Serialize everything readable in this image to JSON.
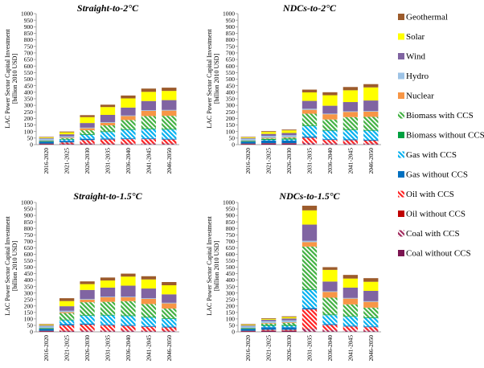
{
  "y_axis_label_line1": "LAC Power Sector Capital Investment",
  "y_axis_label_line2": "[billion 2010 USD]",
  "technologies": [
    {
      "name": "Coal without CCS",
      "color": "#7b1450",
      "hatch": false
    },
    {
      "name": "Coal with CCS",
      "color": "#a0285c",
      "hatch": true
    },
    {
      "name": "Oil without CCS",
      "color": "#c00000",
      "hatch": false
    },
    {
      "name": "Oil with CCS",
      "color": "#ff2020",
      "hatch": true
    },
    {
      "name": "Gas without CCS",
      "color": "#0070c0",
      "hatch": false
    },
    {
      "name": "Gas with CCS",
      "color": "#00b0f0",
      "hatch": true
    },
    {
      "name": "Biomass without CCS",
      "color": "#00a040",
      "hatch": false
    },
    {
      "name": "Biomass with CCS",
      "color": "#40b040",
      "hatch": true
    },
    {
      "name": "Nuclear",
      "color": "#f79646",
      "hatch": false
    },
    {
      "name": "Hydro",
      "color": "#9dc3e6",
      "hatch": false
    },
    {
      "name": "Wind",
      "color": "#8064a2",
      "hatch": false
    },
    {
      "name": "Solar",
      "color": "#ffff00",
      "hatch": false
    },
    {
      "name": "Geothermal",
      "color": "#9c5b2b",
      "hatch": false
    }
  ],
  "legend_order": [
    "Geothermal",
    "Solar",
    "Wind",
    "Hydro",
    "Nuclear",
    "Biomass with CCS",
    "Biomass without CCS",
    "Gas with CCS",
    "Gas without CCS",
    "Oil with CCS",
    "Oil without CCS",
    "Coal with CCS",
    "Coal without CCS"
  ],
  "chart_data": [
    {
      "type": "bar",
      "stacked": true,
      "title": "Straight-to-2°C",
      "categories": [
        "2016-2020",
        "2021-2025",
        "2026-2030",
        "2031-2035",
        "2036-2040",
        "2041-2045",
        "2046-2050"
      ],
      "ylim": [
        0,
        1000
      ],
      "yticks": [
        0,
        50,
        100,
        150,
        200,
        250,
        300,
        350,
        400,
        450,
        500,
        550,
        600,
        650,
        700,
        750,
        800,
        850,
        900,
        950,
        1000
      ],
      "series": [
        {
          "name": "Coal without CCS",
          "values": [
            5,
            4,
            3,
            2,
            2,
            2,
            2
          ]
        },
        {
          "name": "Coal with CCS",
          "values": [
            0,
            3,
            5,
            6,
            6,
            6,
            6
          ]
        },
        {
          "name": "Oil without CCS",
          "values": [
            3,
            2,
            2,
            1,
            1,
            1,
            1
          ]
        },
        {
          "name": "Oil with CCS",
          "values": [
            0,
            8,
            25,
            30,
            33,
            33,
            30
          ]
        },
        {
          "name": "Gas without CCS",
          "values": [
            15,
            12,
            10,
            8,
            6,
            6,
            6
          ]
        },
        {
          "name": "Gas with CCS",
          "values": [
            0,
            10,
            30,
            50,
            65,
            70,
            70
          ]
        },
        {
          "name": "Biomass without CCS",
          "values": [
            5,
            5,
            5,
            5,
            5,
            5,
            5
          ]
        },
        {
          "name": "Biomass with CCS",
          "values": [
            0,
            5,
            30,
            45,
            70,
            95,
            100
          ]
        },
        {
          "name": "Nuclear",
          "values": [
            2,
            5,
            15,
            20,
            30,
            40,
            40
          ]
        },
        {
          "name": "Hydro",
          "values": [
            15,
            10,
            5,
            5,
            5,
            5,
            5
          ]
        },
        {
          "name": "Wind",
          "values": [
            5,
            15,
            35,
            55,
            60,
            70,
            75
          ]
        },
        {
          "name": "Solar",
          "values": [
            5,
            15,
            45,
            60,
            70,
            70,
            70
          ]
        },
        {
          "name": "Geothermal",
          "values": [
            4,
            6,
            15,
            18,
            22,
            25,
            25
          ]
        }
      ]
    },
    {
      "type": "bar",
      "stacked": true,
      "title": "NDCs-to-2°C",
      "categories": [
        "2016-2020",
        "2021-2025",
        "2026-2030",
        "2031-2035",
        "2036-2040",
        "2041-2045",
        "2046-2050"
      ],
      "ylim": [
        0,
        1000
      ],
      "yticks": [
        0,
        50,
        100,
        150,
        200,
        250,
        300,
        350,
        400,
        450,
        500,
        550,
        600,
        650,
        700,
        750,
        800,
        850,
        900,
        950,
        1000
      ],
      "series": [
        {
          "name": "Coal without CCS",
          "values": [
            5,
            8,
            8,
            2,
            2,
            2,
            2
          ]
        },
        {
          "name": "Coal with CCS",
          "values": [
            0,
            0,
            0,
            10,
            8,
            6,
            6
          ]
        },
        {
          "name": "Oil without CCS",
          "values": [
            3,
            3,
            3,
            1,
            1,
            1,
            1
          ]
        },
        {
          "name": "Oil with CCS",
          "values": [
            0,
            0,
            0,
            40,
            25,
            25,
            22
          ]
        },
        {
          "name": "Gas without CCS",
          "values": [
            15,
            20,
            20,
            8,
            6,
            6,
            6
          ]
        },
        {
          "name": "Gas with CCS",
          "values": [
            0,
            5,
            8,
            80,
            65,
            70,
            70
          ]
        },
        {
          "name": "Biomass without CCS",
          "values": [
            5,
            8,
            8,
            5,
            5,
            5,
            5
          ]
        },
        {
          "name": "Biomass with CCS",
          "values": [
            0,
            3,
            5,
            90,
            80,
            95,
            100
          ]
        },
        {
          "name": "Nuclear",
          "values": [
            2,
            5,
            5,
            30,
            40,
            40,
            40
          ]
        },
        {
          "name": "Hydro",
          "values": [
            15,
            15,
            15,
            8,
            5,
            5,
            5
          ]
        },
        {
          "name": "Wind",
          "values": [
            5,
            15,
            17,
            60,
            60,
            70,
            80
          ]
        },
        {
          "name": "Solar",
          "values": [
            5,
            15,
            20,
            65,
            80,
            90,
            100
          ]
        },
        {
          "name": "Geothermal",
          "values": [
            4,
            6,
            6,
            21,
            23,
            25,
            25
          ]
        }
      ]
    },
    {
      "type": "bar",
      "stacked": true,
      "title": "Straight-to-1.5°C",
      "categories": [
        "2016-2020",
        "2021-2025",
        "2026-2030",
        "2031-2035",
        "2036-2040",
        "2041-2045",
        "2046-2050"
      ],
      "ylim": [
        0,
        1000
      ],
      "yticks": [
        0,
        50,
        100,
        150,
        200,
        250,
        300,
        350,
        400,
        450,
        500,
        550,
        600,
        650,
        700,
        750,
        800,
        850,
        900,
        950,
        1000
      ],
      "series": [
        {
          "name": "Coal without CCS",
          "values": [
            5,
            3,
            2,
            2,
            2,
            2,
            2
          ]
        },
        {
          "name": "Coal with CCS",
          "values": [
            0,
            5,
            8,
            8,
            8,
            6,
            6
          ]
        },
        {
          "name": "Oil without CCS",
          "values": [
            3,
            2,
            1,
            1,
            1,
            1,
            1
          ]
        },
        {
          "name": "Oil with CCS",
          "values": [
            0,
            40,
            45,
            40,
            35,
            30,
            25
          ]
        },
        {
          "name": "Gas without CCS",
          "values": [
            15,
            10,
            8,
            6,
            6,
            6,
            6
          ]
        },
        {
          "name": "Gas with CCS",
          "values": [
            0,
            30,
            60,
            70,
            70,
            65,
            60
          ]
        },
        {
          "name": "Biomass without CCS",
          "values": [
            5,
            5,
            5,
            5,
            5,
            5,
            5
          ]
        },
        {
          "name": "Biomass with CCS",
          "values": [
            0,
            50,
            100,
            100,
            110,
            100,
            75
          ]
        },
        {
          "name": "Nuclear",
          "values": [
            2,
            8,
            20,
            35,
            30,
            40,
            40
          ]
        },
        {
          "name": "Hydro",
          "values": [
            15,
            10,
            5,
            5,
            5,
            5,
            5
          ]
        },
        {
          "name": "Wind",
          "values": [
            5,
            35,
            70,
            70,
            85,
            75,
            65
          ]
        },
        {
          "name": "Solar",
          "values": [
            5,
            40,
            45,
            55,
            70,
            70,
            70
          ]
        },
        {
          "name": "Geothermal",
          "values": [
            5,
            22,
            21,
            23,
            23,
            25,
            25
          ]
        }
      ]
    },
    {
      "type": "bar",
      "stacked": true,
      "title": "NDCs-to-1.5°C",
      "categories": [
        "2016-2020",
        "2021-2025",
        "2026-2030",
        "2031-2035",
        "2036-2040",
        "2041-2045",
        "2046-2050"
      ],
      "ylim": [
        0,
        1000
      ],
      "yticks": [
        0,
        50,
        100,
        150,
        200,
        250,
        300,
        350,
        400,
        450,
        500,
        550,
        600,
        650,
        700,
        750,
        800,
        850,
        900,
        950,
        1000
      ],
      "series": [
        {
          "name": "Coal without CCS",
          "values": [
            5,
            8,
            8,
            2,
            2,
            2,
            2
          ]
        },
        {
          "name": "Coal with CCS",
          "values": [
            0,
            0,
            0,
            20,
            10,
            8,
            8
          ]
        },
        {
          "name": "Oil without CCS",
          "values": [
            3,
            3,
            3,
            2,
            1,
            1,
            1
          ]
        },
        {
          "name": "Oil with CCS",
          "values": [
            0,
            5,
            5,
            150,
            40,
            30,
            25
          ]
        },
        {
          "name": "Gas without CCS",
          "values": [
            15,
            20,
            20,
            10,
            6,
            6,
            6
          ]
        },
        {
          "name": "Gas with CCS",
          "values": [
            0,
            10,
            10,
            140,
            70,
            70,
            65
          ]
        },
        {
          "name": "Biomass without CCS",
          "values": [
            5,
            8,
            8,
            5,
            5,
            5,
            5
          ]
        },
        {
          "name": "Biomass with CCS",
          "values": [
            0,
            10,
            15,
            330,
            130,
            90,
            75
          ]
        },
        {
          "name": "Nuclear",
          "values": [
            2,
            5,
            5,
            35,
            45,
            45,
            45
          ]
        },
        {
          "name": "Hydro",
          "values": [
            15,
            15,
            15,
            10,
            5,
            5,
            5
          ]
        },
        {
          "name": "Wind",
          "values": [
            5,
            10,
            15,
            125,
            75,
            80,
            80
          ]
        },
        {
          "name": "Solar",
          "values": [
            5,
            6,
            10,
            110,
            90,
            70,
            70
          ]
        },
        {
          "name": "Geothermal",
          "values": [
            5,
            5,
            6,
            36,
            21,
            28,
            28
          ]
        }
      ]
    }
  ]
}
